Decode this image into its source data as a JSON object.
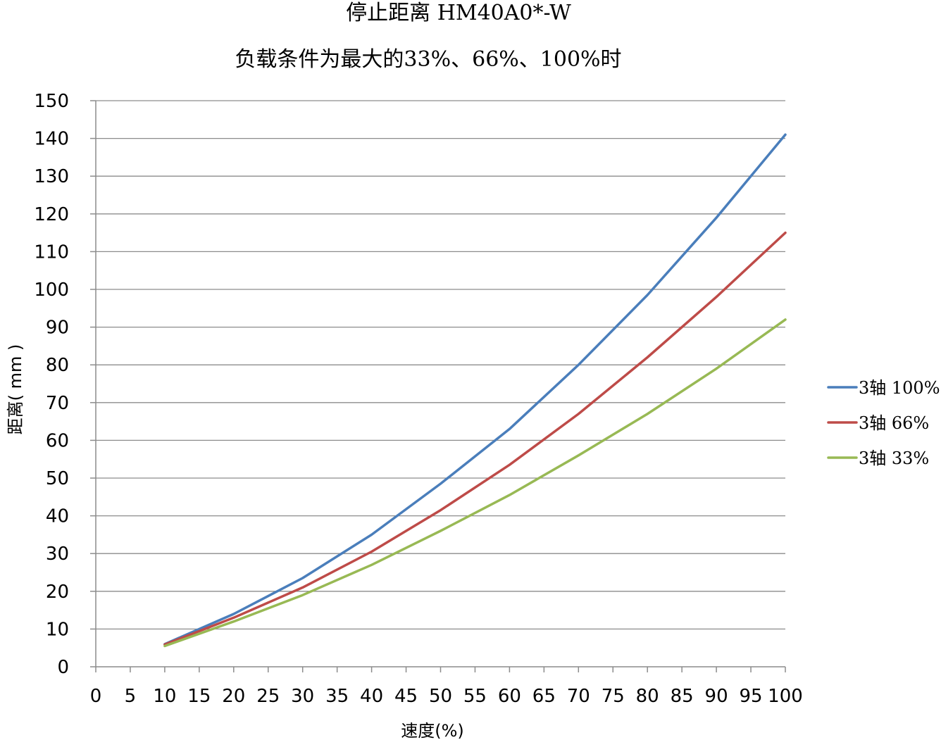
{
  "chart_data": {
    "type": "line",
    "title": "停止距离 HM40A0*-W",
    "subtitle": "负载条件为最大的33%、66%、100%时",
    "xlabel": "速度(%)",
    "ylabel": "距离( mm )",
    "xlim": [
      0,
      100
    ],
    "ylim": [
      0,
      150
    ],
    "x_ticks": [
      0,
      5,
      10,
      15,
      20,
      25,
      30,
      35,
      40,
      45,
      50,
      55,
      60,
      65,
      70,
      75,
      80,
      85,
      90,
      95,
      100
    ],
    "y_ticks": [
      0,
      10,
      20,
      30,
      40,
      50,
      60,
      70,
      80,
      90,
      100,
      110,
      120,
      130,
      140,
      150
    ],
    "grid": "horizontal",
    "legend_position": "right",
    "x": [
      10,
      20,
      30,
      40,
      50,
      60,
      70,
      80,
      90,
      100
    ],
    "series": [
      {
        "name": "3轴 100%",
        "color": "#4a7ebb",
        "values": [
          6,
          14,
          23.5,
          35,
          48.5,
          63,
          80,
          98.5,
          119,
          141
        ]
      },
      {
        "name": "3轴 66%",
        "color": "#be4b48",
        "values": [
          5.9,
          13,
          21,
          30.5,
          41.5,
          53.5,
          67,
          82,
          98,
          115
        ]
      },
      {
        "name": "3轴 33%",
        "color": "#98b954",
        "values": [
          5.5,
          12,
          19,
          27,
          36,
          45.5,
          56,
          67,
          79,
          92
        ]
      }
    ]
  }
}
